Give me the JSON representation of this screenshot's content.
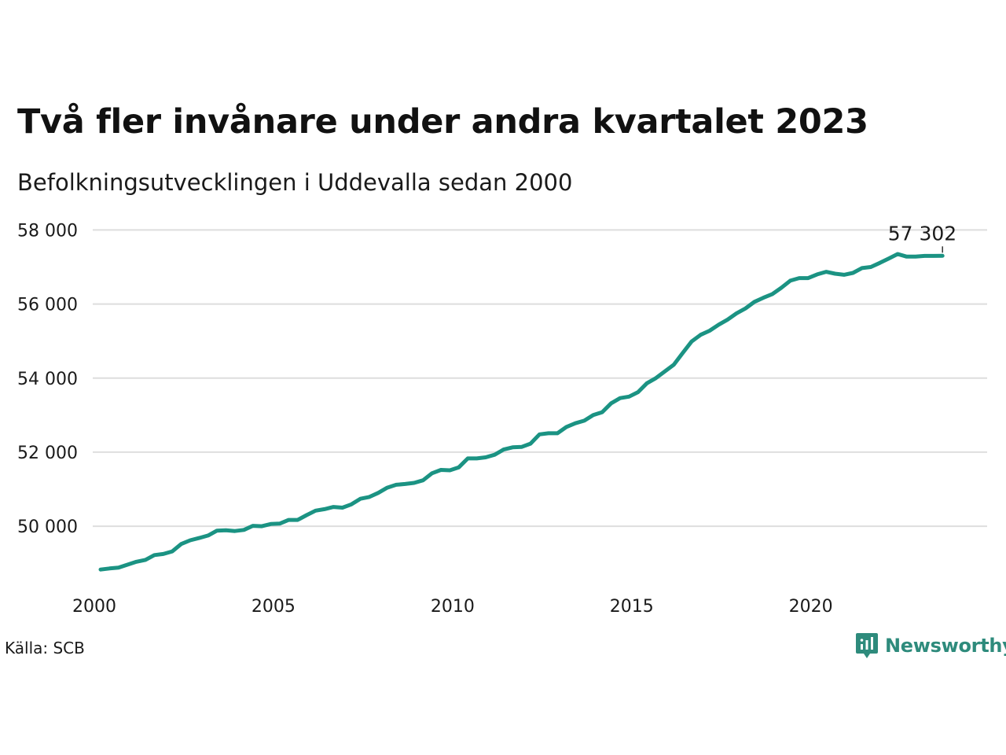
{
  "header": {
    "title": "Två fler invånare under andra kvartalet 2023",
    "subtitle": "Befolkningsutvecklingen i Uddevalla sedan 2000"
  },
  "footer": {
    "source": "Källa: SCB",
    "brand": "Newsworthy",
    "brand_icon": "chart-bubble-icon"
  },
  "colors": {
    "line": "#1b9383",
    "grid": "#dedede",
    "brand": "#2e8b7c"
  },
  "chart_data": {
    "type": "line",
    "title": "Två fler invånare under andra kvartalet 2023",
    "subtitle": "Befolkningsutvecklingen i Uddevalla sedan 2000",
    "xlabel": "",
    "ylabel": "",
    "xlim": [
      2000.0,
      2024.0
    ],
    "ylim": [
      48600,
      58200
    ],
    "x_ticks": [
      2000,
      2005,
      2010,
      2015,
      2020
    ],
    "x_tick_labels": [
      "2000",
      "2005",
      "2010",
      "2015",
      "2020"
    ],
    "y_ticks": [
      50000,
      52000,
      54000,
      56000,
      58000
    ],
    "y_tick_labels": [
      "50 000",
      "52 000",
      "54 000",
      "56 000",
      "58 000"
    ],
    "grid": "horizontal",
    "end_label": "57 302",
    "series": [
      {
        "x": [
          2000.0,
          2000.25,
          2000.5,
          2000.75,
          2001.0,
          2001.25,
          2001.5,
          2001.75,
          2002.0,
          2002.25,
          2002.5,
          2002.75,
          2003.0,
          2003.25,
          2003.5,
          2003.75,
          2004.0,
          2004.25,
          2004.5,
          2004.75,
          2005.0,
          2005.25,
          2005.5,
          2005.75,
          2006.0,
          2006.25,
          2006.5,
          2006.75,
          2007.0,
          2007.25,
          2007.5,
          2007.75,
          2008.0,
          2008.25,
          2008.5,
          2008.75,
          2009.0,
          2009.25,
          2009.5,
          2009.75,
          2010.0,
          2010.25,
          2010.5,
          2010.75,
          2011.0,
          2011.25,
          2011.5,
          2011.75,
          2012.0,
          2012.25,
          2012.5,
          2012.75,
          2013.0,
          2013.25,
          2013.5,
          2013.75,
          2014.0,
          2014.25,
          2014.5,
          2014.75,
          2015.0,
          2015.25,
          2015.5,
          2015.75,
          2016.0,
          2016.25,
          2016.5,
          2016.75,
          2017.0,
          2017.25,
          2017.5,
          2017.75,
          2018.0,
          2018.25,
          2018.5,
          2018.75,
          2019.0,
          2019.25,
          2019.5,
          2019.75,
          2020.0,
          2020.25,
          2020.5,
          2020.75,
          2021.0,
          2021.25,
          2021.5,
          2021.75,
          2022.0,
          2022.25,
          2022.5,
          2022.75,
          2023.0,
          2023.25,
          2023.5
        ],
        "y": [
          48830,
          48860,
          48880,
          48960,
          49040,
          49090,
          49220,
          49250,
          49320,
          49520,
          49620,
          49680,
          49750,
          49880,
          49890,
          49870,
          49900,
          50010,
          50000,
          50060,
          50070,
          50170,
          50170,
          50300,
          50420,
          50460,
          50520,
          50500,
          50590,
          50740,
          50790,
          50900,
          51040,
          51120,
          51140,
          51170,
          51240,
          51430,
          51520,
          51510,
          51590,
          51830,
          51830,
          51860,
          51930,
          52070,
          52130,
          52140,
          52230,
          52480,
          52510,
          52510,
          52680,
          52780,
          52850,
          53000,
          53080,
          53320,
          53460,
          53500,
          53620,
          53860,
          54000,
          54180,
          54360,
          54680,
          54990,
          55170,
          55280,
          55440,
          55580,
          55750,
          55880,
          56060,
          56170,
          56270,
          56440,
          56630,
          56700,
          56700,
          56800,
          56870,
          56820,
          56790,
          56840,
          56970,
          57000,
          57110,
          57230,
          57350,
          57280,
          57280,
          57300,
          57300,
          57302
        ]
      }
    ]
  }
}
